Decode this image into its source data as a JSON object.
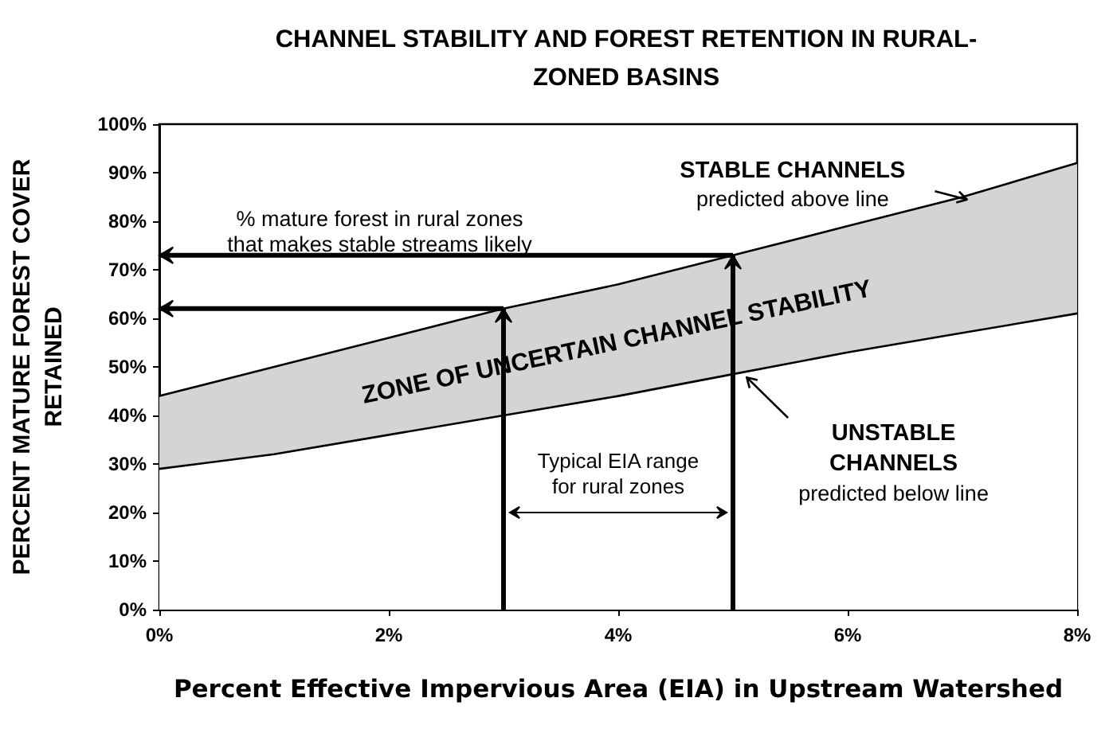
{
  "chart_data": {
    "title": "CHANNEL STABILITY AND FOREST RETENTION IN RURAL-\nZONED BASINS",
    "xlabel": "Percent Effective Impervious Area (EIA) in Upstream Watershed",
    "ylabel": "PERCENT MATURE FOREST COVER\nRETAINED",
    "x": [
      0,
      1,
      2,
      3,
      4,
      5,
      6,
      7,
      8
    ],
    "series": [
      {
        "color": "#d4d4d4",
        "values": [
          44,
          50,
          56,
          62,
          67,
          73,
          79,
          85,
          92
        ]
      },
      {
        "color": "#ffffff",
        "values": [
          29,
          32,
          36,
          40,
          44,
          48.5,
          53,
          57,
          61
        ]
      }
    ],
    "xlim": [
      0,
      8
    ],
    "xticks": [
      {
        "value": 0,
        "label": "0%"
      },
      {
        "value": 2,
        "label": "2%"
      },
      {
        "value": 4,
        "label": "4%"
      },
      {
        "value": 6,
        "label": "6%"
      },
      {
        "value": 8,
        "label": "8%"
      }
    ],
    "ylim": [
      0,
      100
    ],
    "yticks": [
      {
        "value": 0,
        "label": "0%"
      },
      {
        "value": 10,
        "label": "10%"
      },
      {
        "value": 20,
        "label": "20%"
      },
      {
        "value": 30,
        "label": "30%"
      },
      {
        "value": 40,
        "label": "40%"
      },
      {
        "value": 50,
        "label": "50%"
      },
      {
        "value": 60,
        "label": "60%"
      },
      {
        "value": 70,
        "label": "70%"
      },
      {
        "value": 80,
        "label": "80%"
      },
      {
        "value": 90,
        "label": "90%"
      },
      {
        "value": 100,
        "label": "100%"
      }
    ],
    "ref_lines": [
      {
        "axis": "x",
        "value": 3
      },
      {
        "axis": "y",
        "value": 62
      },
      {
        "axis": "x",
        "value": 5
      },
      {
        "axis": "y",
        "value": 73
      }
    ],
    "annotations": [
      "% mature forest in rural zones\nthat makes stable streams likely",
      "STABLE CHANNELS\npredicted above line",
      "ZONE OF UNCERTAIN CHANNEL STABILITY",
      "UNSTABLE\nCHANNELS\npredicted below line",
      "Typical EIA range\nfor rural zones"
    ],
    "type": "area",
    "grid": false,
    "marker": "none",
    "line_style": "solid"
  }
}
